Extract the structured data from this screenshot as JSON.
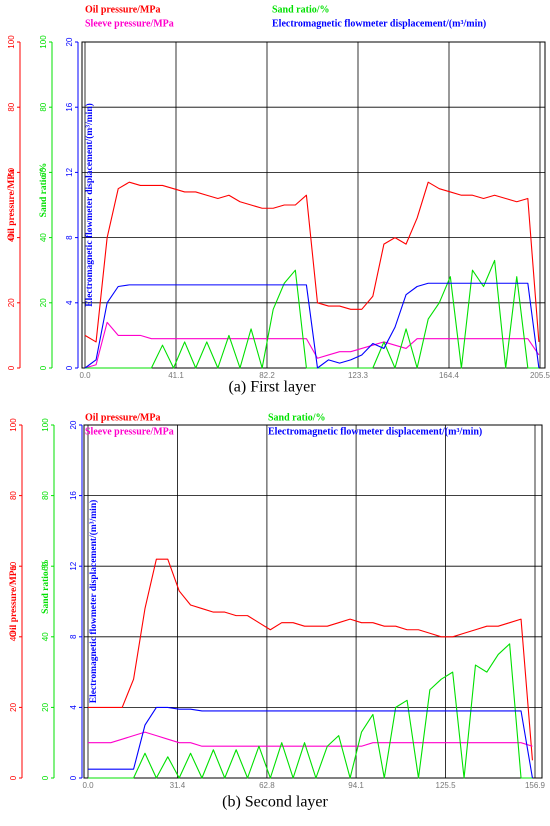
{
  "chart_data": [
    {
      "type": "line",
      "caption": "(a) First layer",
      "ylabel": "Oil pressure/MPa",
      "y2label": "Sand ratio/%",
      "y3label": "Electromagnetic flowmeter displacement/(m³/min)",
      "xlim": [
        0,
        205.5
      ],
      "xticks": [
        {
          "value": 0,
          "label": "0.0"
        },
        41.1,
        82.2,
        123.3,
        164.4,
        205.5
      ],
      "ylim": [
        0,
        100
      ],
      "yticks": [
        0,
        20,
        40,
        60,
        80,
        100
      ],
      "y2lim": [
        0,
        100
      ],
      "y2ticks": [
        0,
        20,
        40,
        60,
        80,
        100
      ],
      "y3lim": [
        0,
        20
      ],
      "y3ticks": [
        0,
        4,
        8,
        12,
        16,
        20
      ],
      "grid": true,
      "x": [
        0,
        5,
        10,
        15,
        20,
        25,
        30,
        35,
        40,
        45,
        50,
        55,
        60,
        65,
        70,
        75,
        80,
        85,
        90,
        95,
        100,
        105,
        110,
        115,
        120,
        125,
        130,
        135,
        140,
        145,
        150,
        155,
        160,
        165,
        170,
        175,
        180,
        185,
        190,
        195,
        200,
        205
      ],
      "series": [
        {
          "name": "Oil pressure/MPa",
          "color": "#ff0000",
          "axis": "y",
          "values": [
            10,
            8,
            40,
            55,
            57,
            56,
            56,
            56,
            55,
            54,
            54,
            53,
            52,
            53,
            51,
            50,
            49,
            49,
            50,
            50,
            53,
            20,
            19,
            19,
            18,
            18,
            22,
            38,
            40,
            38,
            46,
            57,
            55,
            54,
            53,
            53,
            52,
            53,
            52,
            51,
            52,
            8
          ]
        },
        {
          "name": "Sleeve pressure/MPa",
          "color": "#ff00cc",
          "axis": "y",
          "values": [
            0,
            1,
            14,
            10,
            10,
            10,
            9,
            9,
            9,
            9,
            9,
            9,
            9,
            9,
            9,
            9,
            9,
            9,
            9,
            9,
            9,
            3,
            4,
            5,
            5,
            6,
            7,
            8,
            7,
            6,
            9,
            9,
            9,
            9,
            9,
            9,
            9,
            9,
            9,
            9,
            9,
            4
          ]
        },
        {
          "name": "Sand ratio/%",
          "color": "#00e000",
          "axis": "y2",
          "values": [
            0,
            0,
            0,
            0,
            0,
            0,
            0,
            7,
            0,
            8,
            0,
            8,
            0,
            10,
            0,
            12,
            0,
            18,
            26,
            30,
            0,
            0,
            0,
            0,
            0,
            0,
            0,
            8,
            0,
            12,
            0,
            15,
            20,
            28,
            0,
            30,
            25,
            33,
            0,
            28,
            0,
            0
          ]
        },
        {
          "name": "Electromagnetic flowmeter displacement/(m³/min)",
          "color": "#0000ff",
          "axis": "y3",
          "values": [
            0,
            0.5,
            4,
            5,
            5.1,
            5.1,
            5.1,
            5.1,
            5.1,
            5.1,
            5.1,
            5.1,
            5.1,
            5.1,
            5.1,
            5.1,
            5.1,
            5.1,
            5.1,
            5.1,
            5.1,
            0,
            0.5,
            0.3,
            0.5,
            0.8,
            1.5,
            1.2,
            2.5,
            4.5,
            5,
            5.2,
            5.2,
            5.2,
            5.2,
            5.2,
            5.2,
            5.2,
            5.2,
            5.2,
            5.2,
            0
          ]
        }
      ]
    },
    {
      "type": "line",
      "caption": "(b) Second layer",
      "ylabel": "Oil pressure/MPa",
      "y2label": "Sand ratio/%",
      "y3label": "Electromagnetic flowmeter displacement/(m³/min)",
      "xlim": [
        0,
        156.9
      ],
      "xticks": [
        {
          "value": 0,
          "label": "0.0"
        },
        31.4,
        62.8,
        94.1,
        125.5,
        156.9
      ],
      "ylim": [
        0,
        100
      ],
      "yticks": [
        0,
        20,
        40,
        60,
        80,
        100
      ],
      "y2lim": [
        0,
        100
      ],
      "y2ticks": [
        0,
        20,
        40,
        60,
        80,
        100
      ],
      "y3lim": [
        0,
        20
      ],
      "y3ticks": [
        0,
        4,
        8,
        12,
        16,
        20
      ],
      "grid": true,
      "x": [
        0,
        4,
        8,
        12,
        16,
        20,
        24,
        28,
        32,
        36,
        40,
        44,
        48,
        52,
        56,
        60,
        64,
        68,
        72,
        76,
        80,
        84,
        88,
        92,
        96,
        100,
        104,
        108,
        112,
        116,
        120,
        124,
        128,
        132,
        136,
        140,
        144,
        148,
        152,
        156
      ],
      "series": [
        {
          "name": "Oil pressure/MPa",
          "color": "#ff0000",
          "axis": "y",
          "values": [
            20,
            20,
            20,
            20,
            28,
            48,
            62,
            62,
            53,
            49,
            48,
            47,
            47,
            46,
            46,
            44,
            42,
            44,
            44,
            43,
            43,
            43,
            44,
            45,
            44,
            44,
            43,
            43,
            42,
            42,
            41,
            40,
            40,
            41,
            42,
            43,
            43,
            44,
            45,
            5
          ]
        },
        {
          "name": "Sleeve pressure/MPa",
          "color": "#ff00cc",
          "axis": "y",
          "values": [
            10,
            10,
            10,
            11,
            12,
            13,
            12,
            11,
            10,
            10,
            9,
            9,
            9,
            9,
            9,
            9,
            9,
            9,
            9,
            9,
            9,
            9,
            9,
            9,
            9,
            10,
            10,
            10,
            10,
            10,
            10,
            10,
            10,
            10,
            10,
            10,
            10,
            10,
            10,
            9
          ]
        },
        {
          "name": "Sand ratio/%",
          "color": "#00e000",
          "axis": "y2",
          "values": [
            0,
            0,
            0,
            0,
            0,
            7,
            0,
            6,
            0,
            7,
            0,
            8,
            0,
            8,
            0,
            9,
            0,
            10,
            0,
            10,
            0,
            9,
            12,
            0,
            13,
            18,
            0,
            20,
            22,
            0,
            25,
            28,
            30,
            0,
            32,
            30,
            35,
            38,
            0,
            0
          ]
        },
        {
          "name": "Electromagnetic flowmeter displacement/(m³/min)",
          "color": "#0000ff",
          "axis": "y3",
          "values": [
            0.5,
            0.5,
            0.5,
            0.5,
            0.5,
            3,
            4,
            4,
            3.9,
            3.9,
            3.8,
            3.8,
            3.8,
            3.8,
            3.8,
            3.8,
            3.8,
            3.8,
            3.8,
            3.8,
            3.8,
            3.8,
            3.8,
            3.8,
            3.8,
            3.8,
            3.8,
            3.8,
            3.8,
            3.8,
            3.8,
            3.8,
            3.8,
            3.8,
            3.8,
            3.8,
            3.8,
            3.8,
            3.8,
            0
          ]
        }
      ]
    }
  ]
}
